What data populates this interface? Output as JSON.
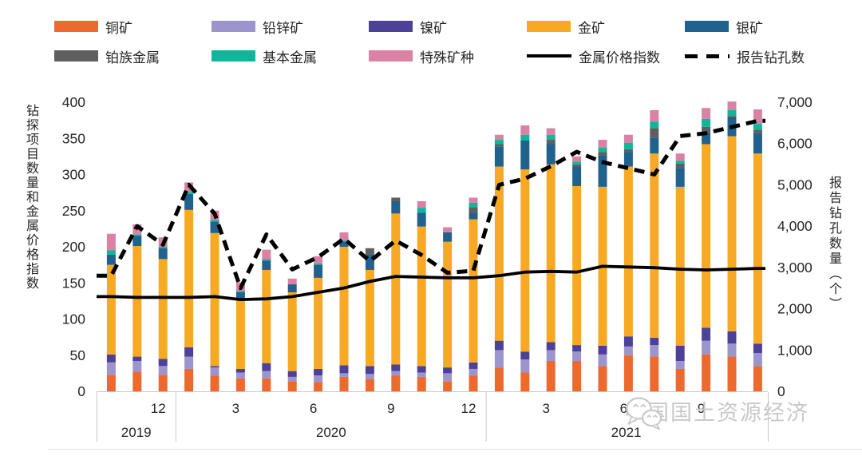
{
  "legend": {
    "items": [
      {
        "label": "铜矿",
        "color": "#ED6A2F",
        "type": "swatch"
      },
      {
        "label": "铅锌矿",
        "color": "#9C95CD",
        "type": "swatch"
      },
      {
        "label": "镍矿",
        "color": "#4C4197",
        "type": "swatch"
      },
      {
        "label": "金矿",
        "color": "#F7A923",
        "type": "swatch"
      },
      {
        "label": "银矿",
        "color": "#20618E",
        "type": "swatch"
      },
      {
        "label": "铂族金属",
        "color": "#5F5F5F",
        "type": "swatch"
      },
      {
        "label": "基本金属",
        "color": "#0EB79A",
        "type": "swatch"
      },
      {
        "label": "特殊矿种",
        "color": "#DA81A4",
        "type": "swatch"
      },
      {
        "label": "金属价格指数",
        "color": "#000000",
        "type": "solid-line"
      },
      {
        "label": "报告钻孔数",
        "color": "#000000",
        "type": "dashed-line"
      }
    ]
  },
  "axes": {
    "left": {
      "title": "钻探项目数量和金属价格指数",
      "tick_labels": [
        "400",
        "350",
        "300",
        "250",
        "200",
        "150",
        "100",
        "50",
        "0"
      ]
    },
    "right": {
      "title": "报告钻孔数量（个）",
      "tick_labels": [
        "7,000",
        "6,000",
        "5,000",
        "4,000",
        "3,000",
        "2,000",
        "1,000",
        "0"
      ]
    },
    "x": {
      "month_labels": [
        {
          "text": "12",
          "category_index": 2
        },
        {
          "text": "3",
          "category_index": 5
        },
        {
          "text": "6",
          "category_index": 8
        },
        {
          "text": "9",
          "category_index": 11
        },
        {
          "text": "12",
          "category_index": 14
        },
        {
          "text": "3",
          "category_index": 17
        },
        {
          "text": "6",
          "category_index": 20
        },
        {
          "text": "9",
          "category_index": 23
        }
      ],
      "years": [
        {
          "label": "2019",
          "from_index": 0,
          "to_index": 2
        },
        {
          "label": "2020",
          "from_index": 3,
          "to_index": 14
        },
        {
          "label": "2021",
          "from_index": 15,
          "to_index": 25
        }
      ]
    }
  },
  "chart_data": {
    "type": "bar",
    "subtype": "stacked-bars-with-two-lines",
    "title": "",
    "xlabel": "",
    "ylabel_left": "钻探项目数量和金属价格指数",
    "ylabel_right": "报告钻孔数量（个）",
    "grid": false,
    "legend_position": "top",
    "left_axis": {
      "min": 0,
      "max": 400,
      "tick_step": 50
    },
    "right_axis": {
      "min": 0,
      "max": 7000,
      "tick_step": 1000
    },
    "categories": [
      "2019-10",
      "2019-11",
      "2019-12",
      "2020-01",
      "2020-02",
      "2020-03",
      "2020-04",
      "2020-05",
      "2020-06",
      "2020-07",
      "2020-08",
      "2020-09",
      "2020-10",
      "2020-11",
      "2020-12",
      "2021-01",
      "2021-02",
      "2021-03",
      "2021-04",
      "2021-05",
      "2021-06",
      "2021-07",
      "2021-08",
      "2021-09",
      "2021-10",
      "2021-11"
    ],
    "stacked_series": [
      {
        "name": "铜矿",
        "color": "#ED6A2F",
        "values": [
          23,
          27,
          23,
          31,
          22,
          18,
          18,
          14,
          13,
          20,
          17,
          22,
          20,
          14,
          22,
          33,
          26,
          42,
          42,
          35,
          50,
          48,
          31,
          51,
          48,
          35
        ]
      },
      {
        "name": "铅锌矿",
        "color": "#9C95CD",
        "values": [
          17,
          15,
          12,
          17,
          11,
          8,
          10,
          6,
          9,
          5,
          7,
          6,
          6,
          11,
          9,
          24,
          18,
          15,
          13,
          16,
          12,
          16,
          11,
          19,
          18,
          18
        ]
      },
      {
        "name": "镍矿",
        "color": "#4C4197",
        "values": [
          11,
          6,
          10,
          13,
          2,
          5,
          11,
          8,
          9,
          11,
          11,
          9,
          9,
          8,
          9,
          13,
          11,
          11,
          9,
          12,
          14,
          10,
          21,
          18,
          17,
          13
        ]
      },
      {
        "name": "金矿",
        "color": "#F7A923",
        "values": [
          124,
          153,
          138,
          190,
          184,
          97,
          129,
          109,
          126,
          164,
          133,
          209,
          193,
          174,
          198,
          241,
          252,
          246,
          220,
          220,
          235,
          255,
          220,
          254,
          270,
          263
        ]
      },
      {
        "name": "银矿",
        "color": "#20618E",
        "values": [
          14,
          14,
          15,
          22,
          16,
          9,
          13,
          11,
          18,
          7,
          21,
          17,
          19,
          13,
          9,
          28,
          40,
          28,
          27,
          43,
          20,
          22,
          26,
          17,
          26,
          28
        ]
      },
      {
        "name": "铂族金属",
        "color": "#5F5F5F",
        "values": [
          0,
          0,
          0,
          0,
          0,
          0,
          0,
          0,
          0,
          0,
          9,
          5,
          0,
          0,
          8,
          3,
          0,
          6,
          3,
          5,
          4,
          13,
          6,
          7,
          2,
          5
        ]
      },
      {
        "name": "基本金属",
        "color": "#0EB79A",
        "values": [
          6,
          2,
          2,
          3,
          2,
          2,
          2,
          0,
          2,
          2,
          0,
          0,
          7,
          0,
          6,
          6,
          8,
          7,
          4,
          6,
          9,
          9,
          4,
          11,
          8,
          8
        ]
      },
      {
        "name": "特殊矿种",
        "color": "#DA81A4",
        "values": [
          23,
          14,
          13,
          13,
          13,
          12,
          13,
          8,
          10,
          11,
          0,
          0,
          9,
          7,
          7,
          7,
          13,
          9,
          7,
          11,
          11,
          16,
          10,
          15,
          12,
          20
        ]
      }
    ],
    "line_series": [
      {
        "name": "金属价格指数",
        "axis": "left",
        "style": "solid",
        "color": "#000000",
        "values": [
          131,
          130,
          130,
          130,
          131,
          127,
          128,
          131,
          137,
          143,
          152,
          159,
          158,
          157,
          157,
          160,
          165,
          166,
          165,
          173,
          172,
          171,
          169,
          168,
          169,
          170
        ]
      },
      {
        "name": "报告钻孔数",
        "axis": "right",
        "style": "dashed",
        "color": "#000000",
        "values": [
          2800,
          4000,
          3550,
          5000,
          4300,
          2500,
          3800,
          2950,
          3250,
          3700,
          3150,
          3650,
          3300,
          2870,
          2920,
          5000,
          5150,
          5450,
          5800,
          5550,
          5400,
          5250,
          6180,
          6250,
          6400,
          6550
        ]
      }
    ]
  },
  "watermark": {
    "text": "中国国土资源经济",
    "icon": "wechat-icon",
    "color": "#c9c9c9"
  }
}
